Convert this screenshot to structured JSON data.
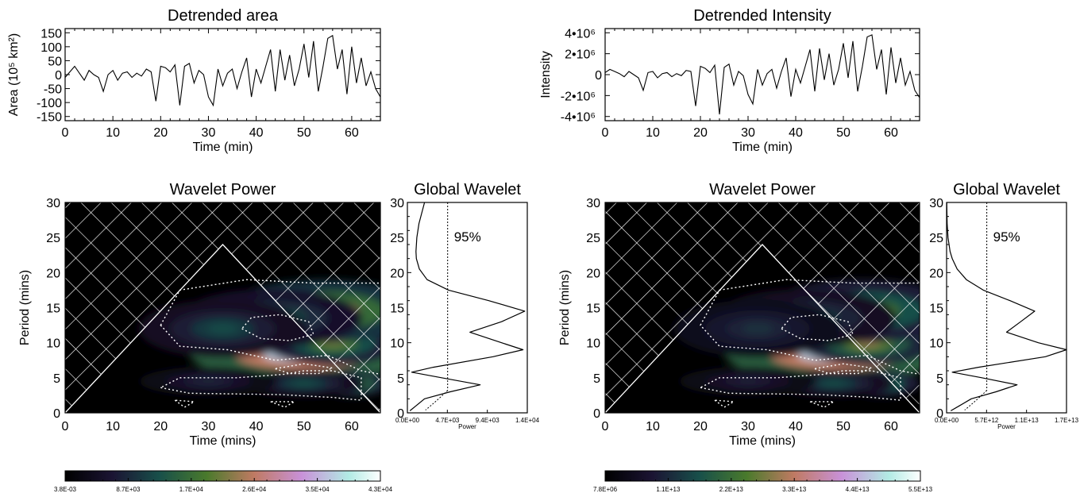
{
  "chart_data": [
    {
      "type": "line",
      "title": "Detrended area",
      "xlabel": "Time (min)",
      "ylabel": "Area (10⁵ km²)",
      "xlim": [
        0,
        66
      ],
      "ylim": [
        -165,
        165
      ],
      "xticks": [
        "0",
        "10",
        "20",
        "30",
        "40",
        "50",
        "60"
      ],
      "yticks": [
        "150",
        "100",
        "50",
        "0",
        "-50",
        "-100",
        "-150"
      ],
      "x": [
        0,
        1,
        2,
        3,
        4,
        5,
        6,
        7,
        8,
        9,
        10,
        11,
        12,
        13,
        14,
        15,
        16,
        17,
        18,
        19,
        20,
        21,
        22,
        23,
        24,
        25,
        26,
        27,
        28,
        29,
        30,
        31,
        32,
        33,
        34,
        35,
        36,
        37,
        38,
        39,
        40,
        41,
        42,
        43,
        44,
        45,
        46,
        47,
        48,
        49,
        50,
        51,
        52,
        53,
        54,
        55,
        56,
        57,
        58,
        59,
        60,
        61,
        62,
        63,
        64,
        65,
        66
      ],
      "y": [
        -10,
        10,
        30,
        5,
        -20,
        15,
        0,
        -10,
        -60,
        0,
        15,
        -20,
        5,
        10,
        -10,
        5,
        -5,
        20,
        10,
        -95,
        30,
        25,
        10,
        35,
        -110,
        30,
        40,
        -30,
        15,
        0,
        -80,
        -110,
        20,
        -40,
        5,
        20,
        -50,
        10,
        60,
        -80,
        20,
        -30,
        30,
        90,
        -60,
        90,
        -20,
        70,
        -40,
        20,
        110,
        -10,
        120,
        -60,
        30,
        130,
        140,
        20,
        90,
        -70,
        100,
        -30,
        60,
        -40,
        10,
        -50,
        -80
      ]
    },
    {
      "type": "line",
      "title": "Detrended Intensity",
      "xlabel": "Time (min)",
      "ylabel": "Intensity",
      "xlim": [
        0,
        66
      ],
      "ylim": [
        -4.4,
        4.4
      ],
      "y_unit": "10⁶",
      "xticks": [
        "0",
        "10",
        "20",
        "30",
        "40",
        "50",
        "60"
      ],
      "yticks": [
        "4•10⁶",
        "2•10⁶",
        "0",
        "-2•10⁶",
        "-4•10⁶"
      ],
      "x": [
        0,
        1,
        2,
        3,
        4,
        5,
        6,
        7,
        8,
        9,
        10,
        11,
        12,
        13,
        14,
        15,
        16,
        17,
        18,
        19,
        20,
        21,
        22,
        23,
        24,
        25,
        26,
        27,
        28,
        29,
        30,
        31,
        32,
        33,
        34,
        35,
        36,
        37,
        38,
        39,
        40,
        41,
        42,
        43,
        44,
        45,
        46,
        47,
        48,
        49,
        50,
        51,
        52,
        53,
        54,
        55,
        56,
        57,
        58,
        59,
        60,
        61,
        62,
        63,
        64,
        65,
        66
      ],
      "y": [
        0.2,
        0.5,
        0.3,
        0.1,
        -0.2,
        0.3,
        0.0,
        -0.3,
        -1.5,
        0.2,
        0.3,
        -0.3,
        0.1,
        0.2,
        -0.2,
        0.1,
        -0.1,
        0.4,
        0.3,
        -3.0,
        0.8,
        0.6,
        0.2,
        0.9,
        -3.8,
        0.7,
        1.0,
        -1.0,
        0.3,
        -0.1,
        -1.9,
        -2.8,
        0.5,
        -1.0,
        0.1,
        0.5,
        -1.3,
        0.3,
        1.6,
        -2.1,
        0.5,
        -0.8,
        0.8,
        2.4,
        -1.6,
        2.5,
        -0.5,
        2.0,
        -1.0,
        0.5,
        3.0,
        -0.3,
        3.2,
        -1.6,
        0.8,
        3.6,
        3.8,
        0.5,
        2.4,
        -1.9,
        2.6,
        -0.8,
        1.6,
        -1.0,
        0.3,
        -1.5,
        -2.2
      ]
    },
    {
      "type": "heatmap",
      "title": "Wavelet Power",
      "xlabel": "Time (mins)",
      "ylabel": "Period (mins)",
      "xlim": [
        0,
        66
      ],
      "ylim": [
        0,
        30
      ],
      "xticks": [
        "0",
        "10",
        "20",
        "30",
        "40",
        "50",
        "60"
      ],
      "yticks": [
        "30",
        "25",
        "20",
        "15",
        "10",
        "5",
        "0"
      ],
      "colormap": "cubehelix",
      "colorbar_ticks": [
        "3.8E-03",
        "8.7E+03",
        "1.7E+04",
        "2.6E+04",
        "3.5E+04",
        "4.3E+04"
      ],
      "cone_of_influence_apex": {
        "time": 33,
        "period": 24
      },
      "significance": "95%",
      "power_peaks": [
        {
          "time": 50,
          "period": 8.5,
          "amplitude": 1.0
        },
        {
          "time": 56,
          "period": 10,
          "amplitude": 0.5
        },
        {
          "time": 54,
          "period": 14.5,
          "amplitude": 0.65
        },
        {
          "time": 43,
          "period": 13.5,
          "amplitude": 0.35
        },
        {
          "time": 33,
          "period": 12,
          "amplitude": 0.28
        },
        {
          "time": 60,
          "period": 4.2,
          "amplitude": 0.55
        },
        {
          "time": 50,
          "period": 4.2,
          "amplitude": 0.3
        },
        {
          "time": 30,
          "period": 4.5,
          "amplitude": 0.2
        }
      ]
    },
    {
      "type": "line",
      "title": "Global Wavelet",
      "xlabel": "Power",
      "xlim": [
        0,
        14000
      ],
      "ylim": [
        0,
        30
      ],
      "xticks": [
        "0.0E+00",
        "4.7E+03",
        "9.4E+03",
        "1.4E+04"
      ],
      "yticks": [
        "30",
        "25",
        "20",
        "15",
        "10",
        "5",
        "0"
      ],
      "significance_label": "95%",
      "significance_level": 4700,
      "period": [
        0.3,
        1,
        2,
        3,
        4,
        5,
        5.8,
        6.5,
        8,
        9,
        10,
        11.5,
        13,
        14.5,
        16,
        17.5,
        19,
        20.5,
        22,
        23,
        25,
        27,
        30
      ],
      "power": [
        300,
        1000,
        2000,
        5000,
        8500,
        4000,
        500,
        3000,
        10000,
        13500,
        11000,
        7300,
        11000,
        13700,
        9500,
        4800,
        2300,
        1400,
        1050,
        1000,
        1100,
        1350,
        2000
      ]
    },
    {
      "type": "heatmap",
      "title": "Wavelet Power",
      "xlabel": "Time (mins)",
      "ylabel": "Period (mins)",
      "xlim": [
        0,
        66
      ],
      "ylim": [
        0,
        30
      ],
      "xticks": [
        "0",
        "10",
        "20",
        "30",
        "40",
        "50",
        "60"
      ],
      "yticks": [
        "30",
        "25",
        "20",
        "15",
        "10",
        "5",
        "0"
      ],
      "colormap": "cubehelix",
      "colorbar_ticks": [
        "7.8E+06",
        "1.1E+13",
        "2.2E+13",
        "3.3E+13",
        "4.4E+13",
        "5.5E+13"
      ],
      "cone_of_influence_apex": {
        "time": 33,
        "period": 24
      },
      "significance": "95%",
      "power_peaks": [
        {
          "time": 49,
          "period": 8.5,
          "amplitude": 1.0
        },
        {
          "time": 55,
          "period": 10,
          "amplitude": 0.55
        },
        {
          "time": 54,
          "period": 14.5,
          "amplitude": 0.5
        },
        {
          "time": 42,
          "period": 13.5,
          "amplitude": 0.3
        },
        {
          "time": 32,
          "period": 12,
          "amplitude": 0.22
        },
        {
          "time": 58,
          "period": 4.2,
          "amplitude": 0.5
        },
        {
          "time": 48,
          "period": 4.2,
          "amplitude": 0.3
        },
        {
          "time": 30,
          "period": 4.5,
          "amplitude": 0.18
        }
      ]
    },
    {
      "type": "line",
      "title": "Global Wavelet",
      "xlabel": "Power",
      "xlim": [
        0,
        17000000000000
      ],
      "ylim": [
        0,
        30
      ],
      "xticks": [
        "0.0E+00",
        "5.7E+12",
        "1.1E+13",
        "1.7E+13"
      ],
      "yticks": [
        "30",
        "25",
        "20",
        "15",
        "10",
        "5",
        "0"
      ],
      "significance_label": "95%",
      "significance_level": 5700000000000,
      "period": [
        0.3,
        1,
        2,
        3,
        4,
        5,
        5.8,
        6.5,
        8,
        9,
        10,
        11.5,
        13,
        14.5,
        16,
        17.5,
        19,
        20.5,
        22,
        23,
        25,
        27,
        30
      ],
      "power": [
        600000000000,
        1800000000000,
        3500000000000,
        7000000000000,
        10000000000000,
        5000000000000,
        800000000000,
        4500000000000,
        14000000000000,
        17000000000000,
        13000000000000,
        8500000000000,
        10500000000000,
        12500000000000,
        9000000000000,
        5200000000000,
        2800000000000,
        1500000000000,
        800000000000,
        500000000000,
        200000000000,
        80000000000,
        20000000000
      ]
    }
  ]
}
